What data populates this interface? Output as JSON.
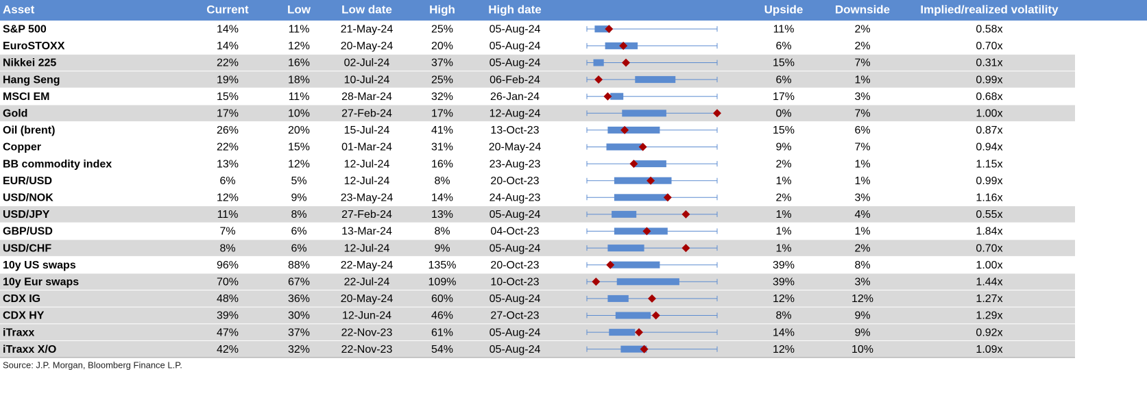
{
  "table": {
    "columns": [
      "Asset",
      "Current",
      "Low",
      "Low date",
      "High",
      "High date",
      "Upside",
      "Downside",
      "Implied/realized volatility"
    ],
    "range": [
      0,
      100
    ],
    "rows": [
      {
        "cells": [
          "S&P 500",
          "14%",
          "11%",
          "21-May-24",
          "25%",
          "05-Aug-24",
          "11%",
          "2%",
          "0.58x"
        ],
        "box": [
          6,
          18
        ],
        "marker": 17,
        "shaded": false
      },
      {
        "cells": [
          "EuroSTOXX",
          "14%",
          "12%",
          "20-May-24",
          "20%",
          "05-Aug-24",
          "6%",
          "2%",
          "0.70x"
        ],
        "box": [
          14,
          39
        ],
        "marker": 28,
        "shaded": false
      },
      {
        "cells": [
          "Nikkei 225",
          "22%",
          "16%",
          "02-Jul-24",
          "37%",
          "05-Aug-24",
          "15%",
          "7%",
          "0.31x"
        ],
        "box": [
          5,
          13
        ],
        "marker": 30,
        "shaded": true
      },
      {
        "cells": [
          "Hang Seng",
          "19%",
          "18%",
          "10-Jul-24",
          "25%",
          "06-Feb-24",
          "6%",
          "1%",
          "0.99x"
        ],
        "box": [
          37,
          68
        ],
        "marker": 9,
        "shaded": true
      },
      {
        "cells": [
          "MSCI EM",
          "15%",
          "11%",
          "28-Mar-24",
          "32%",
          "26-Jan-24",
          "17%",
          "3%",
          "0.68x"
        ],
        "box": [
          18,
          28
        ],
        "marker": 16,
        "shaded": false
      },
      {
        "cells": [
          "Gold",
          "17%",
          "10%",
          "27-Feb-24",
          "17%",
          "12-Aug-24",
          "0%",
          "7%",
          "1.00x"
        ],
        "box": [
          27,
          61
        ],
        "marker": 100,
        "shaded": true
      },
      {
        "cells": [
          "Oil (brent)",
          "26%",
          "20%",
          "15-Jul-24",
          "41%",
          "13-Oct-23",
          "15%",
          "6%",
          "0.87x"
        ],
        "box": [
          16,
          56
        ],
        "marker": 29,
        "shaded": false
      },
      {
        "cells": [
          "Copper",
          "22%",
          "15%",
          "01-Mar-24",
          "31%",
          "20-May-24",
          "9%",
          "7%",
          "0.94x"
        ],
        "box": [
          15,
          43
        ],
        "marker": 43,
        "shaded": false
      },
      {
        "cells": [
          "BB commodity index",
          "13%",
          "12%",
          "12-Jul-24",
          "16%",
          "23-Aug-23",
          "2%",
          "1%",
          "1.15x"
        ],
        "box": [
          36,
          61
        ],
        "marker": 36,
        "shaded": false
      },
      {
        "cells": [
          "EUR/USD",
          "6%",
          "5%",
          "12-Jul-24",
          "8%",
          "20-Oct-23",
          "1%",
          "1%",
          "0.99x"
        ],
        "box": [
          21,
          65
        ],
        "marker": 49,
        "shaded": false
      },
      {
        "cells": [
          "USD/NOK",
          "12%",
          "9%",
          "23-May-24",
          "14%",
          "24-Aug-23",
          "2%",
          "3%",
          "1.16x"
        ],
        "box": [
          21,
          63
        ],
        "marker": 62,
        "shaded": false
      },
      {
        "cells": [
          "USD/JPY",
          "11%",
          "8%",
          "27-Feb-24",
          "13%",
          "05-Aug-24",
          "1%",
          "4%",
          "0.55x"
        ],
        "box": [
          19,
          38
        ],
        "marker": 76,
        "shaded": true
      },
      {
        "cells": [
          "GBP/USD",
          "7%",
          "6%",
          "13-Mar-24",
          "8%",
          "04-Oct-23",
          "1%",
          "1%",
          "1.84x"
        ],
        "box": [
          21,
          62
        ],
        "marker": 46,
        "shaded": false
      },
      {
        "cells": [
          "USD/CHF",
          "8%",
          "6%",
          "12-Jul-24",
          "9%",
          "05-Aug-24",
          "1%",
          "2%",
          "0.70x"
        ],
        "box": [
          16,
          44
        ],
        "marker": 76,
        "shaded": true
      },
      {
        "cells": [
          "10y US swaps",
          "96%",
          "88%",
          "22-May-24",
          "135%",
          "20-Oct-23",
          "39%",
          "8%",
          "1.00x"
        ],
        "box": [
          18,
          56
        ],
        "marker": 18,
        "shaded": false
      },
      {
        "cells": [
          "10y Eur swaps",
          "70%",
          "67%",
          "22-Jul-24",
          "109%",
          "10-Oct-23",
          "39%",
          "3%",
          "1.44x"
        ],
        "box": [
          23,
          71
        ],
        "marker": 7,
        "shaded": true
      },
      {
        "cells": [
          "CDX IG",
          "48%",
          "36%",
          "20-May-24",
          "60%",
          "05-Aug-24",
          "12%",
          "12%",
          "1.27x"
        ],
        "box": [
          16,
          32
        ],
        "marker": 50,
        "shaded": true
      },
      {
        "cells": [
          "CDX HY",
          "39%",
          "30%",
          "12-Jun-24",
          "46%",
          "27-Oct-23",
          "8%",
          "9%",
          "1.29x"
        ],
        "box": [
          22,
          49
        ],
        "marker": 53,
        "shaded": true
      },
      {
        "cells": [
          "iTraxx",
          "47%",
          "37%",
          "22-Nov-23",
          "61%",
          "05-Aug-24",
          "14%",
          "9%",
          "0.92x"
        ],
        "box": [
          17,
          37
        ],
        "marker": 40,
        "shaded": true
      },
      {
        "cells": [
          "iTraxx X/O",
          "42%",
          "32%",
          "22-Nov-23",
          "54%",
          "05-Aug-24",
          "12%",
          "10%",
          "1.09x"
        ],
        "box": [
          26,
          46
        ],
        "marker": 44,
        "shaded": true
      }
    ]
  },
  "source": "Source: J.P. Morgan, Bloomberg Finance L.P."
}
